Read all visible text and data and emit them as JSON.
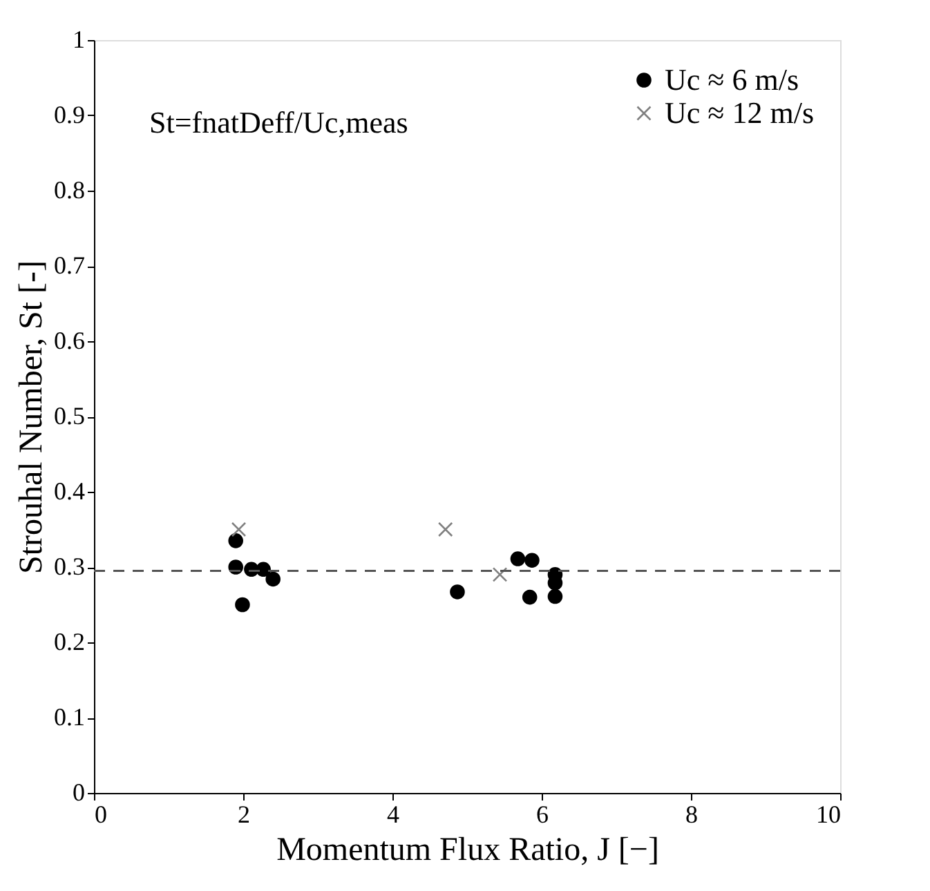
{
  "chart_data": {
    "type": "scatter",
    "xlabel": "Momentum Flux Ratio, J [−]",
    "ylabel": "Strouhal Number, St [-]",
    "annotations": [
      "St=fnatDeff/Uc,meas"
    ],
    "series": [
      {
        "name": "Uc ≈ 6 m/s",
        "color": "#000000",
        "marker": "circle",
        "x": [
          1.9,
          1.9,
          2.11,
          2.27,
          2.4,
          1.99,
          4.87,
          5.68,
          5.87,
          5.84,
          6.18,
          6.18,
          6.18
        ],
        "values": [
          0.335,
          0.3,
          0.297,
          0.297,
          0.284,
          0.25,
          0.267,
          0.311,
          0.309,
          0.26,
          0.29,
          0.279,
          0.261
        ]
      },
      {
        "name": "Uc ≈ 12 m/s",
        "color": "#808080",
        "marker": "cross",
        "x": [
          1.94,
          4.71,
          5.44
        ],
        "values": [
          0.35,
          0.35,
          0.29
        ]
      }
    ],
    "ref_lines": [
      {
        "axis": "y",
        "value": 0.295,
        "color": "#555555",
        "line_style": "dashed"
      }
    ],
    "xlim": [
      0,
      10
    ],
    "xticks": [
      0,
      2,
      4,
      6,
      8,
      10
    ],
    "ylim": [
      0,
      1
    ],
    "yticks": [
      0,
      0.1,
      0.2,
      0.3,
      0.4,
      0.5,
      0.6,
      0.7,
      0.8,
      0.9,
      1
    ],
    "grid": false,
    "legend": "top right"
  }
}
